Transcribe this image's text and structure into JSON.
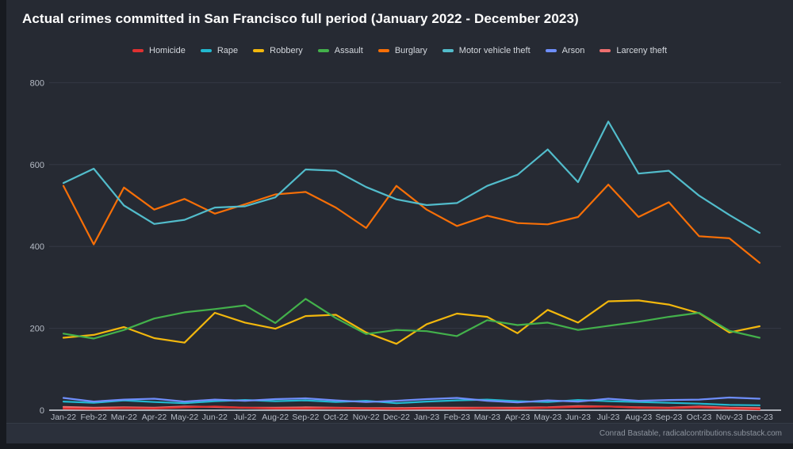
{
  "title": "Actual crimes committed in San Francisco full period (January 2022 - December 2023)",
  "footer": "Conrad Bastable, radicalcontributions.substack.com",
  "ui_colors": {
    "page_background": "#171a20",
    "card_background": "#262a33",
    "grid_line": "#343945",
    "zero_axis_line": "#a9adb5",
    "tick_label": "#b6bcc6",
    "title_text": "#ffffff",
    "legend_text": "#d4d8de",
    "footer_text": "#8d949e"
  },
  "chart_data": {
    "type": "line",
    "title": "Actual crimes committed in San Francisco full period (January 2022 - December 2023)",
    "xlabel": "",
    "ylabel": "",
    "ylim": [
      0,
      800
    ],
    "yticks": [
      0,
      200,
      400,
      600,
      800
    ],
    "grid": true,
    "legend_position": "top",
    "categories": [
      "Jan-22",
      "Feb-22",
      "Mar-22",
      "Apr-22",
      "May-22",
      "Jun-22",
      "Jul-22",
      "Aug-22",
      "Sep-22",
      "Oct-22",
      "Nov-22",
      "Dec-22",
      "Jan-23",
      "Feb-23",
      "Mar-23",
      "Apr-23",
      "May-23",
      "Jun-23",
      "Jul-23",
      "Aug-23",
      "Sep-23",
      "Oct-23",
      "Nov-23",
      "Dec-23"
    ],
    "series": [
      {
        "name": "Homicide",
        "color": "#e03131",
        "values": [
          4,
          3,
          5,
          4,
          7,
          9,
          6,
          4,
          4,
          5,
          4,
          3,
          4,
          4,
          5,
          4,
          6,
          8,
          9,
          6,
          5,
          7,
          4,
          2
        ]
      },
      {
        "name": "Rape",
        "color": "#22b8cf",
        "values": [
          21,
          18,
          24,
          20,
          17,
          22,
          25,
          22,
          24,
          20,
          23,
          17,
          21,
          24,
          26,
          22,
          20,
          25,
          22,
          20,
          18,
          16,
          13,
          12
        ]
      },
      {
        "name": "Robbery",
        "color": "#f2b70d",
        "values": [
          177,
          184,
          203,
          176,
          165,
          238,
          214,
          199,
          230,
          233,
          190,
          162,
          210,
          236,
          228,
          188,
          245,
          214,
          266,
          268,
          258,
          237,
          190,
          205
        ]
      },
      {
        "name": "Assault",
        "color": "#43b14b",
        "values": [
          187,
          175,
          196,
          224,
          239,
          247,
          256,
          213,
          272,
          225,
          186,
          196,
          193,
          181,
          220,
          208,
          214,
          196,
          206,
          216,
          228,
          238,
          194,
          177
        ]
      },
      {
        "name": "Burglary",
        "color": "#f76f07",
        "values": [
          548,
          405,
          544,
          490,
          516,
          480,
          503,
          527,
          533,
          495,
          445,
          548,
          490,
          450,
          475,
          457,
          454,
          472,
          551,
          472,
          508,
          425,
          420,
          360
        ]
      },
      {
        "name": "Motor vehicle theft",
        "color": "#52bccb",
        "values": [
          555,
          590,
          500,
          455,
          465,
          495,
          498,
          520,
          588,
          585,
          545,
          515,
          501,
          506,
          548,
          575,
          637,
          557,
          705,
          578,
          585,
          524,
          477,
          433
        ]
      },
      {
        "name": "Arson",
        "color": "#6e8efb",
        "values": [
          30,
          21,
          26,
          28,
          21,
          26,
          23,
          27,
          29,
          24,
          20,
          23,
          27,
          30,
          23,
          19,
          24,
          21,
          28,
          23,
          25,
          26,
          31,
          28
        ]
      },
      {
        "name": "Larceny theft",
        "color": "#ee6f6f",
        "values": [
          8,
          6,
          7,
          6,
          9,
          8,
          6,
          6,
          7,
          6,
          5,
          5,
          6,
          6,
          6,
          6,
          7,
          10,
          9,
          7,
          6,
          9,
          6,
          5
        ]
      }
    ],
    "draw_order": [
      "Larceny theft",
      "Homicide",
      "Rape",
      "Robbery",
      "Assault",
      "Burglary",
      "Motor vehicle theft",
      "Arson"
    ]
  }
}
